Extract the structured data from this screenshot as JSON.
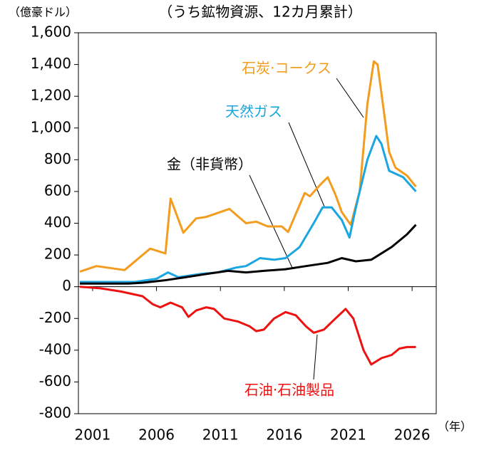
{
  "chart_data": {
    "type": "line",
    "title": "（うち鉱物資源、12カ月累計）",
    "y_label": "（億豪ドル）",
    "x_label": "（年）",
    "xlim": [
      2000,
      2028
    ],
    "xticks": [
      2001,
      2006,
      2011,
      2016,
      2021,
      2026
    ],
    "ylim": [
      -800,
      1600
    ],
    "yticks": [
      {
        "value": -800,
        "label": "-800"
      },
      -600,
      -400,
      -200,
      0,
      200,
      400,
      600,
      800,
      {
        "value": 1000,
        "label": "1,000"
      },
      {
        "value": 1200,
        "label": "1,200"
      },
      {
        "value": 1400,
        "label": "1,400"
      },
      {
        "value": 1600,
        "label": "1,600"
      }
    ],
    "grid": false,
    "series": [
      {
        "name": "石炭·コークス",
        "color": "#f39c1d",
        "x": [
          2000.0,
          2001.3,
          2003.5,
          2005.5,
          2006.7,
          2007.1,
          2008.1,
          2009.1,
          2009.9,
          2011.7,
          2013.0,
          2013.8,
          2014.7,
          2015.8,
          2016.3,
          2017.6,
          2018.0,
          2018.9,
          2019.4,
          2020.0,
          2020.5,
          2021.2,
          2021.9,
          2022.5,
          2023.0,
          2023.3,
          2023.8,
          2024.2,
          2024.7,
          2025.6,
          2026.3
        ],
        "values": [
          95,
          130,
          105,
          240,
          210,
          555,
          340,
          430,
          440,
          490,
          400,
          410,
          380,
          380,
          345,
          590,
          570,
          650,
          690,
          580,
          470,
          390,
          600,
          1150,
          1420,
          1400,
          1100,
          850,
          750,
          700,
          630
        ]
      },
      {
        "name": "天然ガス",
        "color": "#1aa6e0",
        "x": [
          2000.0,
          2004.3,
          2006.0,
          2006.9,
          2007.7,
          2009.4,
          2010.8,
          2012.2,
          2013.0,
          2014.1,
          2015.2,
          2016.1,
          2017.2,
          2018.3,
          2019.0,
          2019.7,
          2020.5,
          2021.1,
          2021.6,
          2022.5,
          2023.2,
          2023.6,
          2024.2,
          2025.3,
          2026.3
        ],
        "values": [
          30,
          30,
          50,
          90,
          60,
          80,
          90,
          120,
          130,
          180,
          170,
          180,
          250,
          400,
          500,
          500,
          420,
          310,
          500,
          800,
          950,
          900,
          730,
          690,
          600
        ]
      },
      {
        "name": "金（非貨幣）",
        "color": "#000000",
        "x": [
          2000.0,
          2003.8,
          2004.9,
          2006.6,
          2008.3,
          2009.9,
          2011.6,
          2013.0,
          2014.4,
          2016.1,
          2017.7,
          2019.4,
          2020.5,
          2021.6,
          2022.8,
          2024.4,
          2025.6,
          2026.3
        ],
        "values": [
          20,
          20,
          25,
          40,
          60,
          80,
          100,
          90,
          100,
          110,
          130,
          150,
          180,
          160,
          170,
          250,
          330,
          390
        ]
      },
      {
        "name": "石油·石油製品",
        "color": "#ee1111",
        "x": [
          2000.0,
          2001.6,
          2003.2,
          2004.9,
          2005.7,
          2006.3,
          2007.1,
          2008.0,
          2008.5,
          2009.1,
          2009.9,
          2010.5,
          2011.3,
          2012.4,
          2013.3,
          2013.8,
          2014.4,
          2015.2,
          2016.1,
          2016.9,
          2017.7,
          2018.3,
          2019.1,
          2020.0,
          2020.8,
          2021.4,
          2022.2,
          2022.8,
          2023.6,
          2024.4,
          2025.0,
          2025.6,
          2026.3
        ],
        "values": [
          0,
          -10,
          -30,
          -60,
          -110,
          -130,
          -100,
          -130,
          -190,
          -150,
          -130,
          -140,
          -200,
          -220,
          -250,
          -280,
          -270,
          -200,
          -160,
          -180,
          -250,
          -290,
          -270,
          -200,
          -140,
          -200,
          -400,
          -490,
          -450,
          -430,
          -390,
          -380,
          -380
        ]
      }
    ]
  }
}
